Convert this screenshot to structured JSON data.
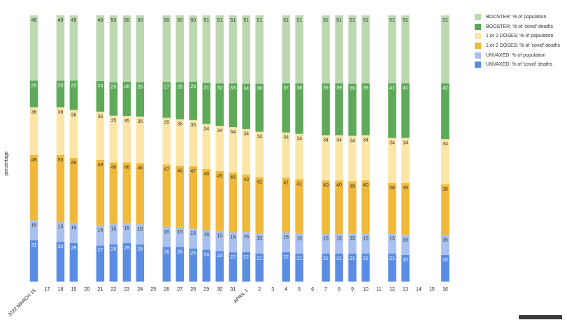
{
  "chart_data": {
    "type": "bar",
    "stacked": true,
    "ylabel": "percentage",
    "categories": [
      "2022 MARCH 16",
      "17",
      "18",
      "19",
      "20",
      "21",
      "22",
      "23",
      "24",
      "25",
      "26",
      "27",
      "28",
      "29",
      "30",
      "31",
      "APRIL 1",
      "2",
      "3",
      "4",
      "5",
      "6",
      "7",
      "8",
      "9",
      "10",
      "11",
      "12",
      "13",
      "14",
      "15",
      "16"
    ],
    "series": [
      {
        "name": "UNVAXED: % of 'covid' deaths",
        "color": "#5b8ce3",
        "values": [
          31,
          null,
          30,
          29,
          null,
          27,
          28,
          29,
          28,
          null,
          26,
          26,
          25,
          24,
          23,
          22,
          22,
          21,
          null,
          22,
          21,
          null,
          21,
          21,
          21,
          21,
          null,
          21,
          20,
          null,
          null,
          20
        ]
      },
      {
        "name": "UNVAXED: % of population",
        "color": "#a9c1ee",
        "values": [
          15,
          null,
          15,
          15,
          null,
          15,
          15,
          15,
          15,
          null,
          15,
          15,
          15,
          15,
          15,
          15,
          15,
          15,
          null,
          15,
          15,
          null,
          15,
          15,
          15,
          15,
          null,
          15,
          15,
          null,
          null,
          15
        ]
      },
      {
        "name": "1 or 2 DOSES: % of 'covid' deaths",
        "color": "#f0b93c",
        "values": [
          49,
          null,
          50,
          49,
          null,
          49,
          46,
          46,
          46,
          null,
          47,
          46,
          47,
          46,
          45,
          45,
          43,
          42,
          null,
          41,
          41,
          null,
          40,
          40,
          39,
          40,
          null,
          38,
          39,
          null,
          null,
          38
        ]
      },
      {
        "name": "1 or 2 DOSES: % of population",
        "color": "#fbe6a7",
        "values": [
          36,
          null,
          36,
          36,
          null,
          36,
          35,
          35,
          35,
          null,
          35,
          35,
          35,
          34,
          34,
          34,
          34,
          34,
          null,
          34,
          34,
          null,
          34,
          34,
          34,
          34,
          null,
          34,
          34,
          null,
          null,
          34
        ]
      },
      {
        "name": "BOOSTER: % of 'covid' deaths",
        "color": "#5ea95a",
        "values": [
          20,
          null,
          20,
          22,
          null,
          23,
          25,
          26,
          26,
          null,
          27,
          28,
          29,
          31,
          32,
          33,
          34,
          36,
          null,
          37,
          38,
          null,
          39,
          39,
          39,
          39,
          null,
          41,
          41,
          null,
          null,
          42
        ]
      },
      {
        "name": "BOOSTER: % of population",
        "color": "#bcd8b0",
        "values": [
          49,
          null,
          49,
          49,
          null,
          49,
          50,
          50,
          50,
          null,
          50,
          50,
          50,
          51,
          51,
          51,
          51,
          51,
          null,
          51,
          51,
          null,
          51,
          51,
          51,
          51,
          null,
          51,
          51,
          null,
          null,
          51
        ]
      }
    ],
    "legend_position": "right",
    "legend_order": [
      5,
      4,
      3,
      2,
      1,
      0
    ],
    "grid": false
  }
}
